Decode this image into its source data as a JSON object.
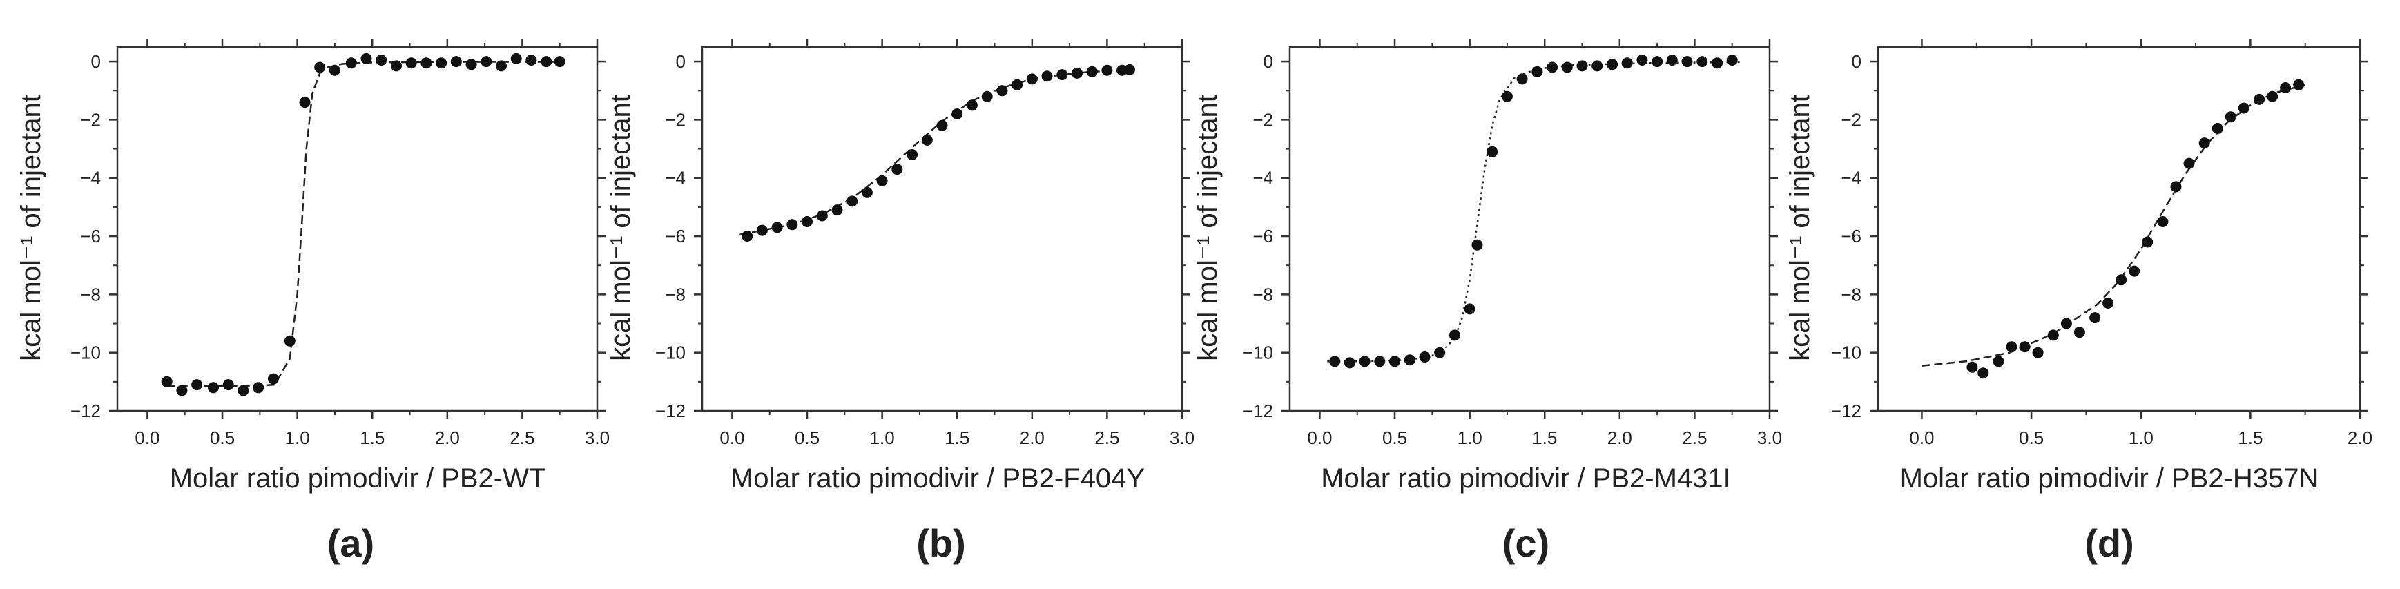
{
  "colors": {
    "ink": "#222222",
    "marker": "#111111",
    "axis": "#333333",
    "background": "#ffffff"
  },
  "chart_data": [
    {
      "type": "scatter",
      "panel": "(a)",
      "xlabel": "Molar ratio pimodivir / PB2-WT",
      "ylabel": "kcal mol⁻¹ of injectant",
      "xlim": [
        -0.2,
        3.0
      ],
      "ylim": [
        -12,
        0.5
      ],
      "xticks": [
        0.0,
        0.5,
        1.0,
        1.5,
        2.0,
        2.5,
        3.0
      ],
      "xtick_labels": [
        "0.0",
        "0.5",
        "1.0",
        "1.5",
        "2.0",
        "2.5",
        "3.0"
      ],
      "yticks": [
        0,
        -2,
        -4,
        -6,
        -8,
        -10,
        -12
      ],
      "ytick_labels": [
        "0",
        "−2",
        "−4",
        "−6",
        "−8",
        "−10",
        "−12"
      ],
      "fit_style": "dashed",
      "series": [
        {
          "name": "data",
          "x": [
            0.13,
            0.23,
            0.33,
            0.44,
            0.54,
            0.64,
            0.74,
            0.84,
            0.95,
            1.05,
            1.15,
            1.25,
            1.36,
            1.46,
            1.56,
            1.66,
            1.76,
            1.86,
            1.96,
            2.06,
            2.16,
            2.26,
            2.36,
            2.46,
            2.56,
            2.66,
            2.75
          ],
          "y": [
            -11.0,
            -11.3,
            -11.1,
            -11.2,
            -11.1,
            -11.3,
            -11.2,
            -10.9,
            -9.6,
            -1.4,
            -0.2,
            -0.3,
            -0.05,
            0.1,
            0.05,
            -0.15,
            -0.05,
            -0.05,
            -0.05,
            0.0,
            -0.1,
            0.0,
            -0.15,
            0.1,
            0.05,
            0.0,
            0.0
          ]
        },
        {
          "name": "fit",
          "x": [
            0.13,
            0.3,
            0.5,
            0.7,
            0.85,
            0.95,
            1.0,
            1.03,
            1.06,
            1.1,
            1.15,
            1.2,
            1.3,
            1.5,
            1.8,
            2.2,
            2.75
          ],
          "y": [
            -11.15,
            -11.15,
            -11.15,
            -11.15,
            -11.1,
            -10.2,
            -8.0,
            -5.6,
            -3.0,
            -1.1,
            -0.4,
            -0.2,
            -0.08,
            -0.03,
            -0.02,
            -0.01,
            -0.01
          ]
        }
      ]
    },
    {
      "type": "scatter",
      "panel": "(b)",
      "xlabel": "Molar ratio pimodivir / PB2-F404Y",
      "ylabel": "kcal mol⁻¹ of injectant",
      "xlim": [
        -0.2,
        3.0
      ],
      "ylim": [
        -12,
        0.5
      ],
      "xticks": [
        0.0,
        0.5,
        1.0,
        1.5,
        2.0,
        2.5,
        3.0
      ],
      "xtick_labels": [
        "0.0",
        "0.5",
        "1.0",
        "1.5",
        "2.0",
        "2.5",
        "3.0"
      ],
      "yticks": [
        0,
        -2,
        -4,
        -6,
        -8,
        -10,
        -12
      ],
      "ytick_labels": [
        "0",
        "−2",
        "−4",
        "−6",
        "−8",
        "−10",
        "−12"
      ],
      "fit_style": "dashed",
      "series": [
        {
          "name": "data",
          "x": [
            0.1,
            0.2,
            0.3,
            0.4,
            0.5,
            0.6,
            0.7,
            0.8,
            0.9,
            1.0,
            1.1,
            1.2,
            1.3,
            1.4,
            1.5,
            1.6,
            1.7,
            1.8,
            1.9,
            2.0,
            2.1,
            2.2,
            2.3,
            2.4,
            2.5,
            2.6,
            2.65
          ],
          "y": [
            -6.0,
            -5.8,
            -5.7,
            -5.6,
            -5.5,
            -5.3,
            -5.1,
            -4.8,
            -4.5,
            -4.1,
            -3.7,
            -3.2,
            -2.7,
            -2.2,
            -1.8,
            -1.5,
            -1.2,
            -1.0,
            -0.8,
            -0.6,
            -0.5,
            -0.45,
            -0.4,
            -0.35,
            -0.3,
            -0.3,
            -0.28
          ]
        },
        {
          "name": "fit",
          "x": [
            0.05,
            0.2,
            0.4,
            0.6,
            0.8,
            1.0,
            1.2,
            1.4,
            1.6,
            1.8,
            2.0,
            2.2,
            2.4,
            2.66
          ],
          "y": [
            -5.95,
            -5.8,
            -5.6,
            -5.25,
            -4.7,
            -3.9,
            -2.95,
            -2.05,
            -1.35,
            -0.9,
            -0.6,
            -0.45,
            -0.35,
            -0.3
          ]
        }
      ]
    },
    {
      "type": "scatter",
      "panel": "(c)",
      "xlabel": "Molar ratio pimodivir / PB2-M431I",
      "ylabel": "kcal mol⁻¹ of injectant",
      "xlim": [
        -0.2,
        3.0
      ],
      "ylim": [
        -12,
        0.5
      ],
      "xticks": [
        0.0,
        0.5,
        1.0,
        1.5,
        2.0,
        2.5,
        3.0
      ],
      "xtick_labels": [
        "0.0",
        "0.5",
        "1.0",
        "1.5",
        "2.0",
        "2.5",
        "3.0"
      ],
      "yticks": [
        0,
        -2,
        -4,
        -6,
        -8,
        -10,
        -12
      ],
      "ytick_labels": [
        "0",
        "−2",
        "−4",
        "−6",
        "−8",
        "−10",
        "−12"
      ],
      "fit_style": "dotted",
      "series": [
        {
          "name": "data",
          "x": [
            0.1,
            0.2,
            0.3,
            0.4,
            0.5,
            0.6,
            0.7,
            0.8,
            0.9,
            1.0,
            1.05,
            1.15,
            1.25,
            1.35,
            1.45,
            1.55,
            1.65,
            1.75,
            1.85,
            1.95,
            2.05,
            2.15,
            2.25,
            2.35,
            2.45,
            2.55,
            2.65,
            2.75
          ],
          "y": [
            -10.3,
            -10.35,
            -10.3,
            -10.3,
            -10.3,
            -10.25,
            -10.15,
            -10.0,
            -9.4,
            -8.5,
            -6.3,
            -3.1,
            -1.2,
            -0.6,
            -0.35,
            -0.2,
            -0.2,
            -0.15,
            -0.15,
            -0.1,
            -0.05,
            0.05,
            0.0,
            0.05,
            0.0,
            0.0,
            -0.05,
            0.05
          ]
        },
        {
          "name": "fit",
          "x": [
            0.05,
            0.3,
            0.6,
            0.8,
            0.9,
            0.95,
            1.0,
            1.05,
            1.1,
            1.15,
            1.2,
            1.3,
            1.45,
            1.7,
            2.2,
            2.8
          ],
          "y": [
            -10.3,
            -10.3,
            -10.25,
            -10.05,
            -9.5,
            -8.8,
            -7.5,
            -5.6,
            -3.7,
            -2.2,
            -1.3,
            -0.55,
            -0.25,
            -0.12,
            -0.05,
            -0.02
          ]
        }
      ]
    },
    {
      "type": "scatter",
      "panel": "(d)",
      "xlabel": "Molar ratio pimodivir / PB2-H357N",
      "ylabel": "kcal mol⁻¹ of injectant",
      "xlim": [
        -0.2,
        2.0
      ],
      "ylim": [
        -12,
        0.5
      ],
      "xticks": [
        0.0,
        0.5,
        1.0,
        1.5,
        2.0
      ],
      "xtick_labels": [
        "0.0",
        "0.5",
        "1.0",
        "1.5",
        "2.0"
      ],
      "yticks": [
        0,
        -2,
        -4,
        -6,
        -8,
        -10,
        -12
      ],
      "ytick_labels": [
        "0",
        "−2",
        "−4",
        "−6",
        "−8",
        "−10",
        "−12"
      ],
      "fit_style": "dashed",
      "series": [
        {
          "name": "data",
          "x": [
            0.23,
            0.28,
            0.35,
            0.41,
            0.47,
            0.53,
            0.6,
            0.66,
            0.72,
            0.79,
            0.85,
            0.91,
            0.97,
            1.03,
            1.1,
            1.16,
            1.22,
            1.29,
            1.35,
            1.41,
            1.47,
            1.54,
            1.6,
            1.66,
            1.72
          ],
          "y": [
            -10.5,
            -10.7,
            -10.3,
            -9.8,
            -9.8,
            -10.0,
            -9.4,
            -9.0,
            -9.3,
            -8.8,
            -8.3,
            -7.5,
            -7.2,
            -6.2,
            -5.5,
            -4.3,
            -3.5,
            -2.8,
            -2.3,
            -1.9,
            -1.6,
            -1.3,
            -1.2,
            -0.9,
            -0.8
          ]
        },
        {
          "name": "fit",
          "x": [
            0.0,
            0.2,
            0.4,
            0.6,
            0.8,
            0.9,
            1.0,
            1.1,
            1.2,
            1.3,
            1.4,
            1.5,
            1.6,
            1.75
          ],
          "y": [
            -10.45,
            -10.3,
            -10.0,
            -9.35,
            -8.35,
            -7.55,
            -6.45,
            -5.15,
            -3.9,
            -2.85,
            -2.05,
            -1.5,
            -1.1,
            -0.8
          ]
        }
      ]
    }
  ]
}
